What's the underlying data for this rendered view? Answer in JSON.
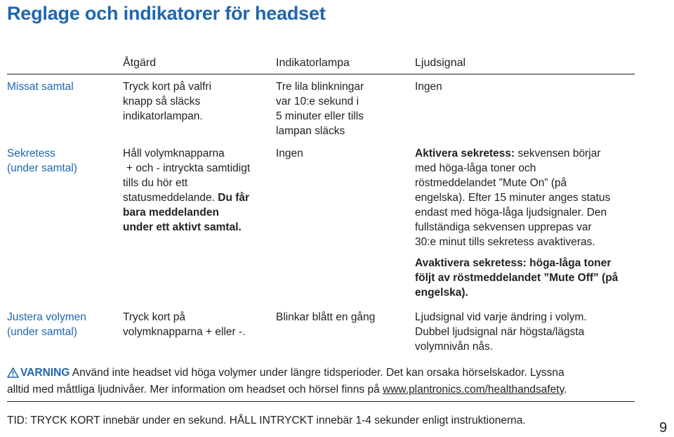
{
  "page": {
    "title": "Reglage och indikatorer för headset",
    "page_number": "9"
  },
  "table": {
    "headers": [
      "Åtgärd",
      "Indikatorlampa",
      "Ljudsignal"
    ],
    "rows": [
      {
        "label": [
          "Missat samtal"
        ],
        "action": [
          "Tryck kort på valfri",
          "knapp så släcks",
          "indikatorlampan."
        ],
        "indicator": [
          "Tre lila blinkningar",
          "var 10:e sekund i",
          "5 minuter eller tills",
          "lampan släcks"
        ],
        "sound": [
          "Ingen"
        ]
      },
      {
        "label": [
          "Sekretess",
          "(under samtal)"
        ],
        "action": [
          "Håll volymknapparna",
          "+ och - intryckta samtidigt",
          "tills du hör ett",
          "statusmeddelande.",
          "Du får",
          "bara meddelanden",
          "under ett aktivt samtal."
        ],
        "indicator": [
          "Ingen"
        ],
        "sound_p1_bold": "Aktivera sekretess:",
        "sound_p1_rest": " sekvensen börjar",
        "sound_p1": [
          "med höga-låga toner och",
          "röstmeddelandet ”Mute On” (på",
          "engelska). Efter 15 minuter anges status",
          "endast med höga-låga ljudsignaler. Den",
          "fullständiga sekvensen upprepas var",
          "30:e minut tills sekretess avaktiveras."
        ],
        "sound_p2": [
          "Avaktivera sekretess: höga-låga toner",
          "följt av röstmeddelandet ”Mute Off” (på",
          "engelska)."
        ]
      },
      {
        "label": [
          "Justera volymen",
          "(under samtal)"
        ],
        "action": [
          "Tryck kort på",
          "volymknapparna + eller -."
        ],
        "indicator": [
          "Blinkar blått en gång"
        ],
        "sound": [
          "Ljudsignal vid varje ändring i volym.",
          "Dubbel ljudsignal när högsta/lägsta",
          "volymnivån nås."
        ]
      }
    ]
  },
  "warning": {
    "label": "VARNING",
    "line1": " Använd inte headset vid höga volymer under längre tidsperioder. Det kan orsaka hörselskador. Lyssna",
    "line2_pre": "alltid med måttliga ljudnivåer. Mer information om headset och hörsel finns på ",
    "link": "www.plantronics.com/healthandsafety",
    "line2_post": "."
  },
  "footer": {
    "tid_label": "TID:",
    "tid_text": " TRYCK KORT innebär under en sekund. HÅLL INTRYCKT innebär 1-4 sekunder enligt instruktionerna."
  },
  "colors": {
    "accent": "#1f66b0",
    "text": "#231f20"
  },
  "icons": {
    "warning": "warning-triangle-icon"
  }
}
